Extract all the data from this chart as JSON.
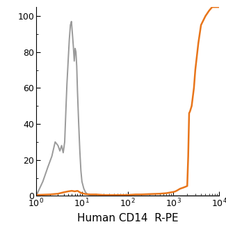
{
  "xlabel": "Human CD14  R-PE",
  "ylim": [
    0,
    105
  ],
  "xlim_log": [
    1,
    10000
  ],
  "yticks": [
    0,
    20,
    40,
    60,
    80,
    100
  ],
  "gray_color": "#9A9A9A",
  "orange_color": "#E8751A",
  "bg_color": "#ffffff",
  "gray_lw": 1.4,
  "orange_lw": 1.8,
  "gray_line": {
    "x": [
      1.0,
      1.4,
      1.8,
      2.2,
      2.6,
      3.0,
      3.3,
      3.6,
      3.9,
      4.2,
      4.5,
      4.7,
      5.0,
      5.3,
      5.6,
      5.9,
      6.2,
      6.5,
      6.8,
      7.1,
      7.4,
      7.7,
      8.0,
      8.5,
      9.0,
      9.5,
      10.0,
      11.0,
      12.0,
      13.0,
      15.0,
      18.0,
      22.0,
      30.0,
      50.0,
      100.0,
      1000.0,
      10000.0
    ],
    "y": [
      0,
      8,
      16,
      22,
      30,
      28,
      25,
      28,
      24,
      30,
      50,
      62,
      75,
      87,
      95,
      97,
      90,
      83,
      75,
      82,
      80,
      72,
      58,
      40,
      25,
      14,
      8,
      4,
      2,
      1,
      0.5,
      0.2,
      0,
      0,
      0,
      0,
      0,
      0
    ]
  },
  "orange_line": {
    "x": [
      1.0,
      2.0,
      3.0,
      4.0,
      5.0,
      6.0,
      7.0,
      8.0,
      9.0,
      10.0,
      12.0,
      15.0,
      20.0,
      30.0,
      50.0,
      100.0,
      150.0,
      200.0,
      300.0,
      500.0,
      700.0,
      900.0,
      1000.0,
      1100.0,
      1200.0,
      1400.0,
      1600.0,
      1800.0,
      2000.0,
      2100.0,
      2200.0,
      2300.0,
      2500.0,
      2800.0,
      3000.0,
      3500.0,
      4000.0,
      5000.0,
      6000.0,
      7000.0,
      8000.0,
      10000.0
    ],
    "y": [
      0.5,
      0.8,
      1.2,
      2.0,
      2.5,
      2.8,
      2.5,
      2.8,
      2.0,
      1.5,
      1.0,
      0.8,
      0.8,
      0.5,
      0.5,
      0.5,
      0.8,
      0.8,
      1.0,
      1.2,
      1.5,
      2.0,
      2.2,
      2.5,
      3.0,
      4.0,
      4.5,
      5.0,
      5.5,
      22.0,
      46.0,
      47.0,
      50.0,
      60.0,
      70.0,
      85.0,
      95.0,
      100.0,
      103.0,
      105.0,
      105.0,
      105.0
    ]
  }
}
